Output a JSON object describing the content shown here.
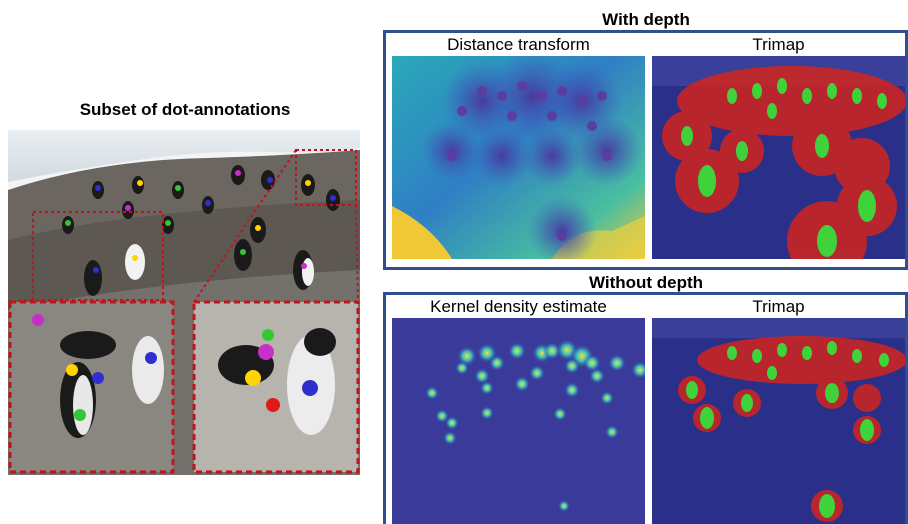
{
  "left_panel": {
    "title": "Subset of dot-annotations"
  },
  "with_depth": {
    "title": "With depth",
    "panels": [
      {
        "label": "Distance transform"
      },
      {
        "label": "Trimap"
      }
    ]
  },
  "without_depth": {
    "title": "Without depth",
    "panels": [
      {
        "label": "Kernel density estimate"
      },
      {
        "label": "Trimap"
      }
    ]
  },
  "colors": {
    "frame": "#2f4f8f",
    "zoom_box": "#c0141c",
    "trimap_bg": "#2a2f8a",
    "trimap_unknown": "#d2241c",
    "trimap_fg": "#3fd23a"
  }
}
